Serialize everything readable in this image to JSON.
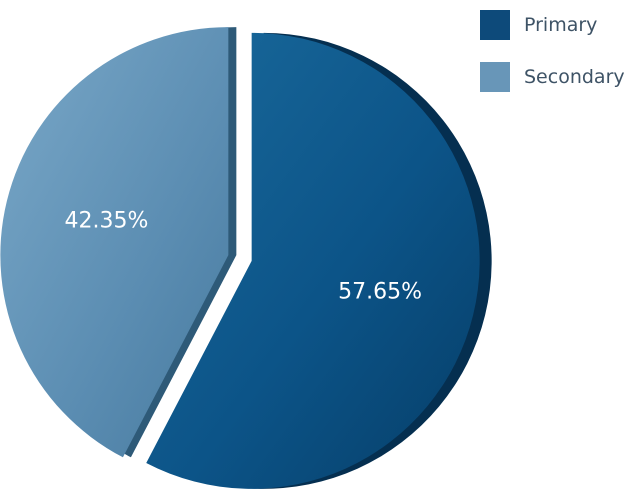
{
  "chart_data": {
    "type": "pie",
    "title": "",
    "legend_position": "top-right",
    "slices": [
      {
        "name": "Primary",
        "value": 57.65,
        "label": "57.65%",
        "color": "#0d4a7a"
      },
      {
        "name": "Secondary",
        "value": 42.35,
        "label": "42.35%",
        "color": "#6896b8"
      }
    ]
  }
}
